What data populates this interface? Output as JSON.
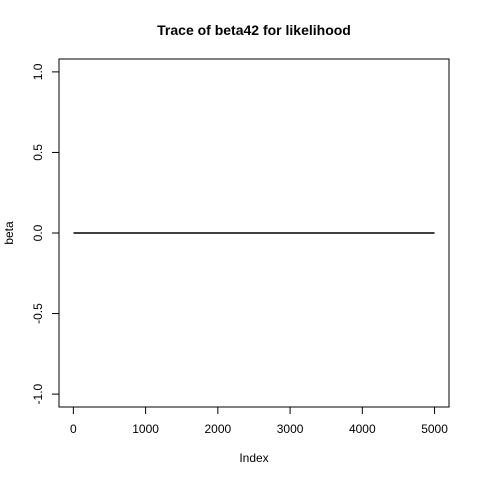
{
  "chart_data": {
    "type": "line",
    "title": "Trace of beta42 for likelihood",
    "xlabel": "Index",
    "ylabel": "beta",
    "xlim": [
      1,
      5000
    ],
    "ylim": [
      -1,
      1
    ],
    "x_ticks": [
      0,
      1000,
      2000,
      3000,
      4000,
      5000
    ],
    "x_tick_labels": [
      "0",
      "1000",
      "2000",
      "3000",
      "4000",
      "5000"
    ],
    "y_ticks": [
      -1.0,
      -0.5,
      0.0,
      0.5,
      1.0
    ],
    "y_tick_labels": [
      "-1.0",
      "-0.5",
      "0.0",
      "0.5",
      "1.0"
    ],
    "grid": false,
    "series": [
      {
        "x": [
          1,
          5000
        ],
        "values": [
          0,
          0
        ]
      }
    ]
  }
}
